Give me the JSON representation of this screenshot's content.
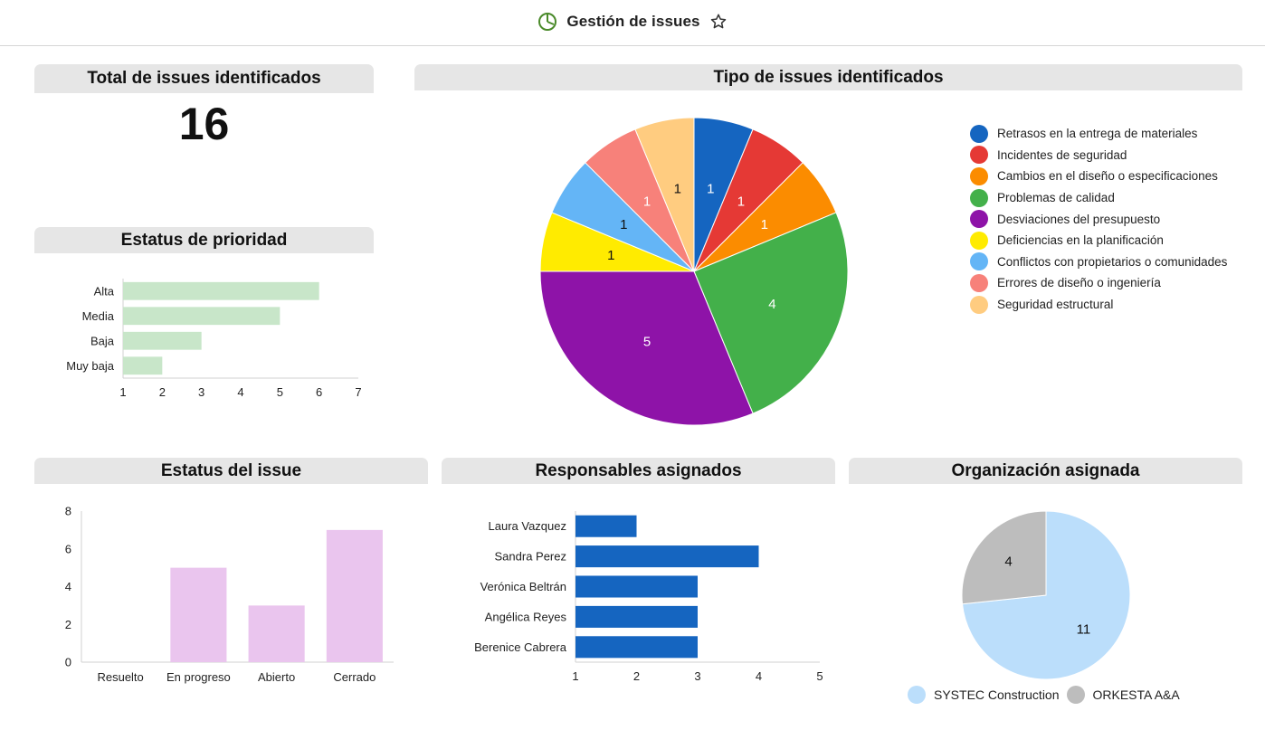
{
  "header": {
    "title": "Gestión de issues",
    "icon": "pie-chart-icon",
    "favorite_icon": "star-outline-icon"
  },
  "panels": {
    "total": {
      "title": "Total de issues identificados",
      "value": "16"
    },
    "priority": {
      "title": "Estatus de prioridad"
    },
    "types": {
      "title": "Tipo de issues identificados"
    },
    "status": {
      "title": "Estatus del issue"
    },
    "owners": {
      "title": "Responsables asignados"
    },
    "org": {
      "title": "Organización asignada"
    }
  },
  "chart_data": [
    {
      "id": "priority",
      "type": "bar",
      "orientation": "horizontal",
      "title": "Estatus de prioridad",
      "categories": [
        "Alta",
        "Media",
        "Baja",
        "Muy baja"
      ],
      "values": [
        6,
        5,
        3,
        2
      ],
      "xlim": [
        1,
        7
      ],
      "xticks": [
        "1",
        "2",
        "3",
        "4",
        "5",
        "6",
        "7"
      ],
      "color": "#c8e6c9"
    },
    {
      "id": "types",
      "type": "pie",
      "title": "Tipo de issues identificados",
      "labels": [
        "Retrasos en la entrega de materiales",
        "Incidentes de seguridad",
        "Cambios en el diseño o especificaciones",
        "Problemas de calidad",
        "Desviaciones del presupuesto",
        "Deficiencias en la planificación",
        "Conflictos con propietarios o comunidades",
        "Errores de diseño o ingeniería",
        "Seguridad estructural"
      ],
      "values": [
        1,
        1,
        1,
        4,
        5,
        1,
        1,
        1,
        1
      ],
      "colors": [
        "#1565c0",
        "#e53935",
        "#fb8c00",
        "#43b04a",
        "#8e13a8",
        "#ffeb00",
        "#64b5f6",
        "#f7817a",
        "#ffcc80"
      ],
      "label_colors": [
        "#ffffff",
        "#ffffff",
        "#ffffff",
        "#ffffff",
        "#ffffff",
        "#111111",
        "#111111",
        "#ffffff",
        "#111111"
      ],
      "legend_position": "right"
    },
    {
      "id": "status",
      "type": "bar",
      "orientation": "vertical",
      "title": "Estatus del issue",
      "categories": [
        "Resuelto",
        "En progreso",
        "Abierto",
        "Cerrado"
      ],
      "values": [
        0,
        5,
        3,
        7
      ],
      "ylim": [
        0,
        8
      ],
      "yticks": [
        "0",
        "2",
        "4",
        "6",
        "8"
      ],
      "color": "#eac5ee"
    },
    {
      "id": "owners",
      "type": "bar",
      "orientation": "horizontal",
      "title": "Responsables asignados",
      "categories": [
        "Laura Vazquez",
        "Sandra Perez",
        "Verónica Beltrán",
        "Angélica Reyes",
        "Berenice Cabrera"
      ],
      "values": [
        2,
        4,
        3,
        3,
        3
      ],
      "xlim": [
        1,
        5
      ],
      "xticks": [
        "1",
        "2",
        "3",
        "4",
        "5"
      ],
      "color": "#1565c0"
    },
    {
      "id": "org",
      "type": "pie",
      "title": "Organización asignada",
      "labels": [
        "SYSTEC Construction",
        "ORKESTA A&A"
      ],
      "values": [
        11,
        4
      ],
      "colors": [
        "#bbdefb",
        "#bdbdbd"
      ],
      "label_colors": [
        "#111111",
        "#111111"
      ],
      "legend_position": "bottom"
    }
  ]
}
